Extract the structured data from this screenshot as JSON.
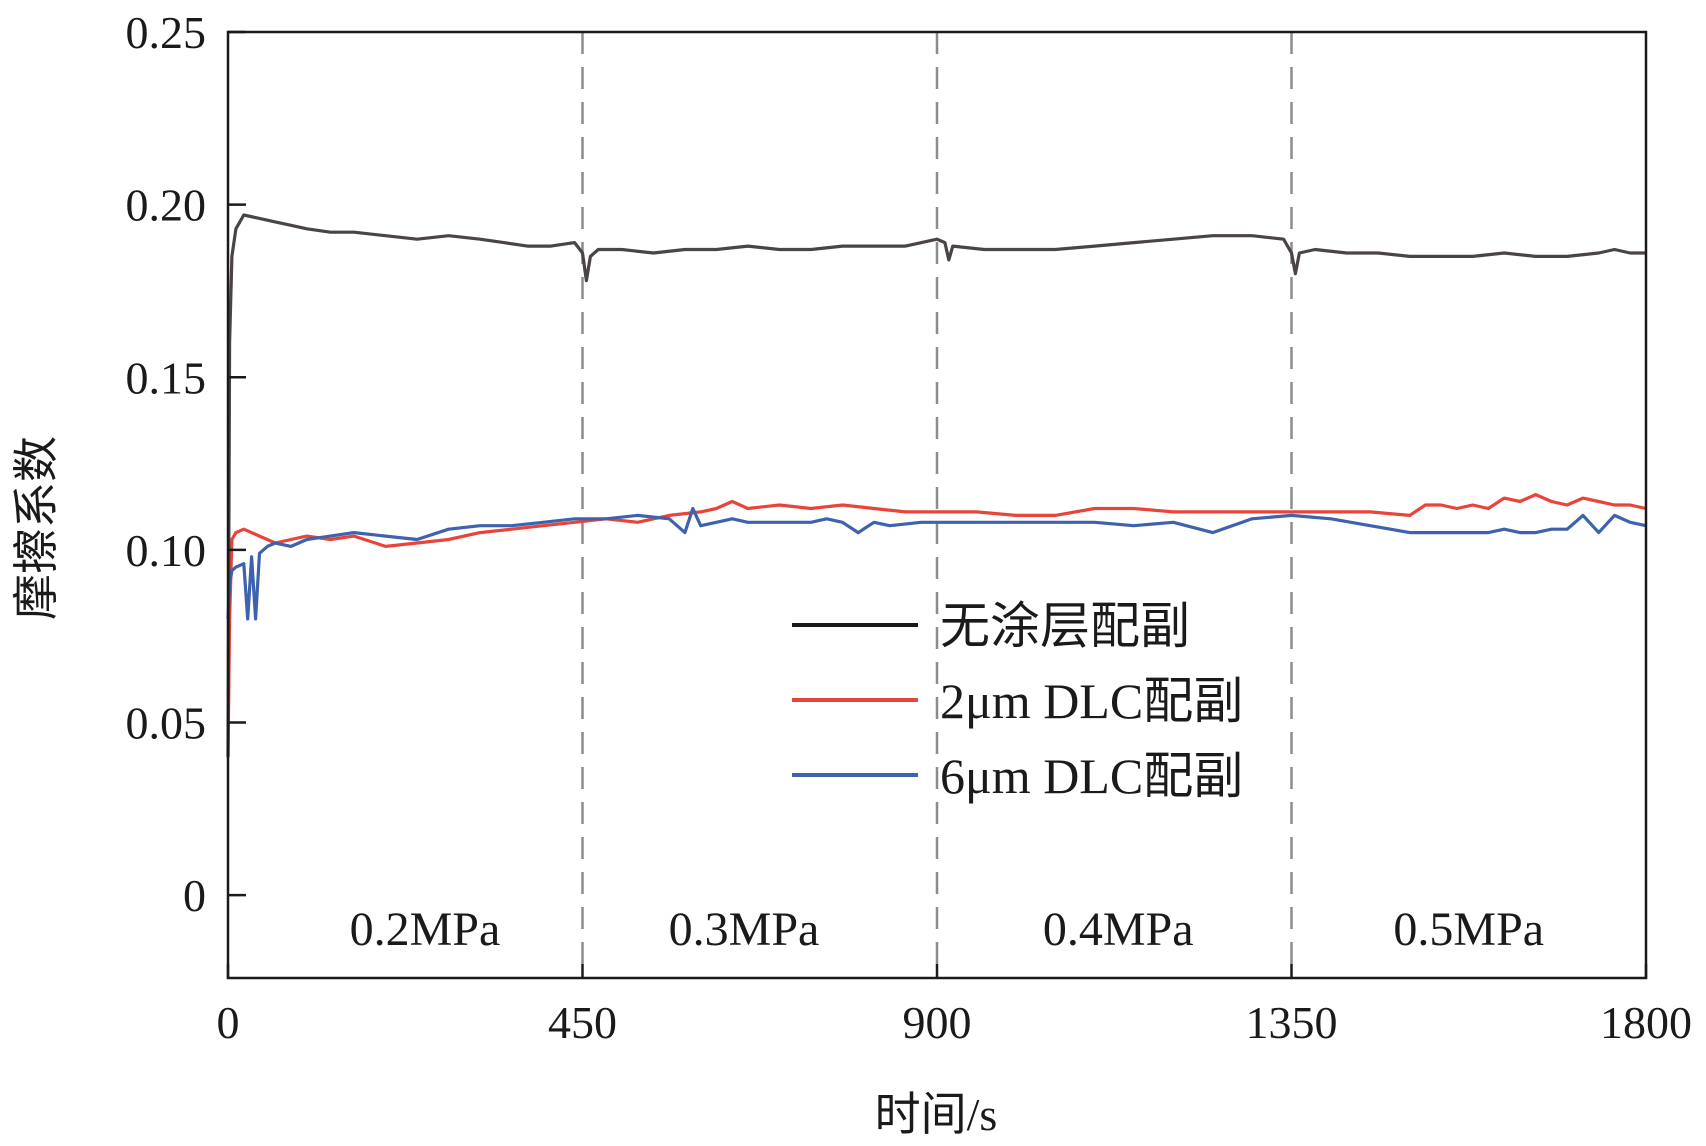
{
  "chart_data": {
    "type": "line",
    "title": "",
    "xlabel": "时间/s",
    "ylabel": "摩擦系数",
    "xlim": [
      0,
      1800
    ],
    "ylim": [
      -0.024,
      0.25
    ],
    "x_ticks": [
      0,
      450,
      900,
      1350,
      1800
    ],
    "x_tick_labels": [
      "0",
      "450",
      "900",
      "1350",
      "1800"
    ],
    "y_ticks": [
      0,
      0.05,
      0.1,
      0.15,
      0.2,
      0.25
    ],
    "y_tick_labels": [
      "0",
      "0.05",
      "0.10",
      "0.15",
      "0.20",
      "0.25"
    ],
    "grid": false,
    "legend_position": "center",
    "phase_dividers": [
      450,
      900,
      1350
    ],
    "phases": [
      {
        "label": "0.2MPa",
        "x_center": 250
      },
      {
        "label": "0.3MPa",
        "x_center": 655
      },
      {
        "label": "0.4MPa",
        "x_center": 1130
      },
      {
        "label": "0.5MPa",
        "x_center": 1575
      }
    ],
    "series": [
      {
        "name": "无涂层配副",
        "color": "#4a4444",
        "x": [
          0,
          2,
          5,
          10,
          20,
          40,
          60,
          80,
          100,
          130,
          160,
          200,
          240,
          280,
          320,
          350,
          380,
          410,
          440,
          450,
          455,
          460,
          470,
          500,
          540,
          580,
          620,
          660,
          700,
          740,
          780,
          820,
          860,
          900,
          910,
          915,
          920,
          960,
          1000,
          1050,
          1100,
          1150,
          1200,
          1250,
          1300,
          1340,
          1350,
          1355,
          1360,
          1380,
          1420,
          1460,
          1500,
          1540,
          1580,
          1620,
          1660,
          1700,
          1740,
          1760,
          1780,
          1800
        ],
        "values": [
          0.04,
          0.16,
          0.185,
          0.193,
          0.197,
          0.196,
          0.195,
          0.194,
          0.193,
          0.192,
          0.192,
          0.191,
          0.19,
          0.191,
          0.19,
          0.189,
          0.188,
          0.188,
          0.189,
          0.186,
          0.178,
          0.185,
          0.187,
          0.187,
          0.186,
          0.187,
          0.187,
          0.188,
          0.187,
          0.187,
          0.188,
          0.188,
          0.188,
          0.19,
          0.189,
          0.184,
          0.188,
          0.187,
          0.187,
          0.187,
          0.188,
          0.189,
          0.19,
          0.191,
          0.191,
          0.19,
          0.186,
          0.18,
          0.186,
          0.187,
          0.186,
          0.186,
          0.185,
          0.185,
          0.185,
          0.186,
          0.185,
          0.185,
          0.186,
          0.187,
          0.186,
          0.186
        ]
      },
      {
        "name": "2μm DLC配副",
        "color": "#e8443a",
        "x": [
          0,
          2,
          5,
          10,
          20,
          40,
          60,
          80,
          100,
          130,
          160,
          200,
          240,
          280,
          320,
          360,
          400,
          440,
          480,
          520,
          560,
          600,
          620,
          640,
          660,
          700,
          740,
          780,
          820,
          860,
          900,
          950,
          1000,
          1050,
          1100,
          1150,
          1200,
          1250,
          1300,
          1350,
          1400,
          1450,
          1500,
          1520,
          1540,
          1560,
          1580,
          1600,
          1620,
          1640,
          1660,
          1680,
          1700,
          1720,
          1740,
          1760,
          1780,
          1800
        ],
        "values": [
          0.04,
          0.08,
          0.103,
          0.105,
          0.106,
          0.104,
          0.102,
          0.103,
          0.104,
          0.103,
          0.104,
          0.101,
          0.102,
          0.103,
          0.105,
          0.106,
          0.107,
          0.108,
          0.109,
          0.108,
          0.11,
          0.111,
          0.112,
          0.114,
          0.112,
          0.113,
          0.112,
          0.113,
          0.112,
          0.111,
          0.111,
          0.111,
          0.11,
          0.11,
          0.112,
          0.112,
          0.111,
          0.111,
          0.111,
          0.111,
          0.111,
          0.111,
          0.11,
          0.113,
          0.113,
          0.112,
          0.113,
          0.112,
          0.115,
          0.114,
          0.116,
          0.114,
          0.113,
          0.115,
          0.114,
          0.113,
          0.113,
          0.112
        ]
      },
      {
        "name": "6μm DLC配副",
        "color": "#3e62ad",
        "x": [
          0,
          2,
          5,
          10,
          20,
          25,
          30,
          35,
          40,
          45,
          50,
          60,
          80,
          100,
          130,
          160,
          200,
          240,
          280,
          320,
          360,
          400,
          440,
          480,
          520,
          560,
          580,
          590,
          600,
          620,
          640,
          660,
          700,
          740,
          760,
          780,
          800,
          820,
          840,
          880,
          920,
          960,
          1000,
          1050,
          1100,
          1150,
          1200,
          1250,
          1300,
          1350,
          1400,
          1450,
          1500,
          1550,
          1600,
          1620,
          1640,
          1660,
          1680,
          1700,
          1720,
          1740,
          1760,
          1780,
          1800
        ],
        "values": [
          0.08,
          0.09,
          0.094,
          0.095,
          0.096,
          0.08,
          0.098,
          0.08,
          0.099,
          0.1,
          0.101,
          0.102,
          0.101,
          0.103,
          0.104,
          0.105,
          0.104,
          0.103,
          0.106,
          0.107,
          0.107,
          0.108,
          0.109,
          0.109,
          0.11,
          0.109,
          0.105,
          0.112,
          0.107,
          0.108,
          0.109,
          0.108,
          0.108,
          0.108,
          0.109,
          0.108,
          0.105,
          0.108,
          0.107,
          0.108,
          0.108,
          0.108,
          0.108,
          0.108,
          0.108,
          0.107,
          0.108,
          0.105,
          0.109,
          0.11,
          0.109,
          0.107,
          0.105,
          0.105,
          0.105,
          0.106,
          0.105,
          0.105,
          0.106,
          0.106,
          0.11,
          0.105,
          0.11,
          0.108,
          0.107
        ]
      }
    ]
  }
}
